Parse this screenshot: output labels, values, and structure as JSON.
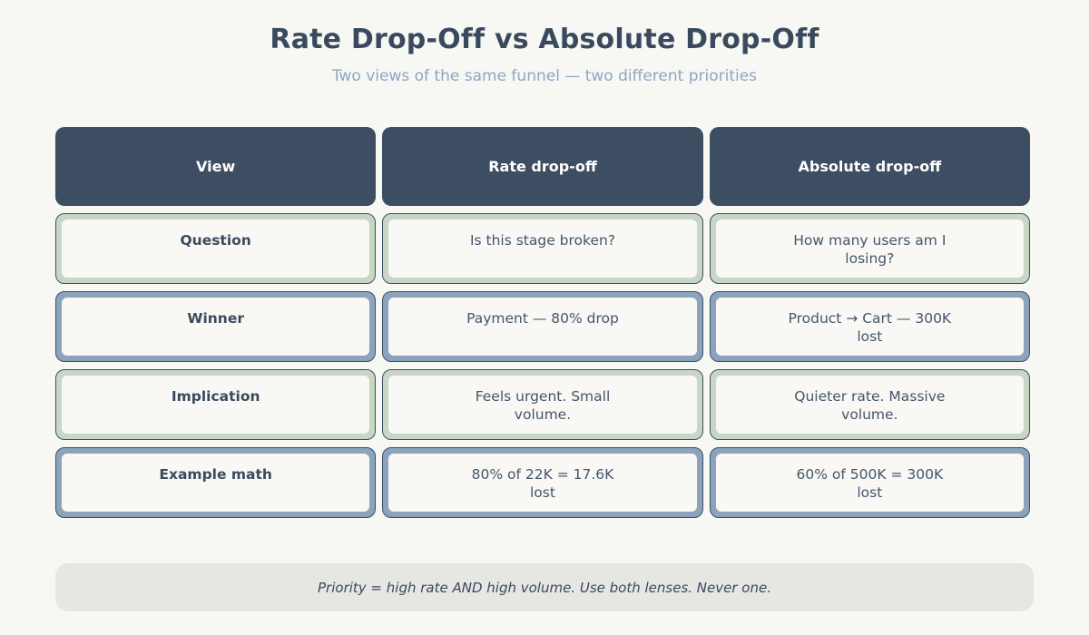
{
  "title": "Rate Drop-Off vs Absolute Drop-Off",
  "subtitle": "Two views of the same funnel — two different priorities",
  "table": {
    "headers": [
      "View",
      "Rate drop-off",
      "Absolute drop-off"
    ],
    "rows": [
      {
        "accent": "green",
        "label": "Question",
        "rate": "Is this stage broken?",
        "absolute": "How many users am I\nlosing?"
      },
      {
        "accent": "blue",
        "label": "Winner",
        "rate": "Payment — 80% drop",
        "absolute": "Product → Cart — 300K\nlost"
      },
      {
        "accent": "green",
        "label": "Implication",
        "rate": "Feels urgent. Small\nvolume.",
        "absolute": "Quieter rate. Massive\nvolume."
      },
      {
        "accent": "blue",
        "label": "Example math",
        "rate": "80% of 22K = 17.6K\nlost",
        "absolute": "60% of 500K = 300K\nlost"
      }
    ]
  },
  "footer": {
    "note": "Priority = high rate AND high volume. Use both lenses. Never one."
  },
  "colors": {
    "page_bg": "#f7f7f4",
    "header_bg": "#3d4d62",
    "accent_green": "#c8d6c6",
    "accent_blue": "#8ba3bd",
    "outline": "#3f4f63",
    "cell_bg": "#f9f8f5",
    "text_dark": "#3a4a5e",
    "text_body": "#44566b",
    "subtitle_color": "#8ca7c2",
    "footer_bg": "#e6e6e3"
  }
}
